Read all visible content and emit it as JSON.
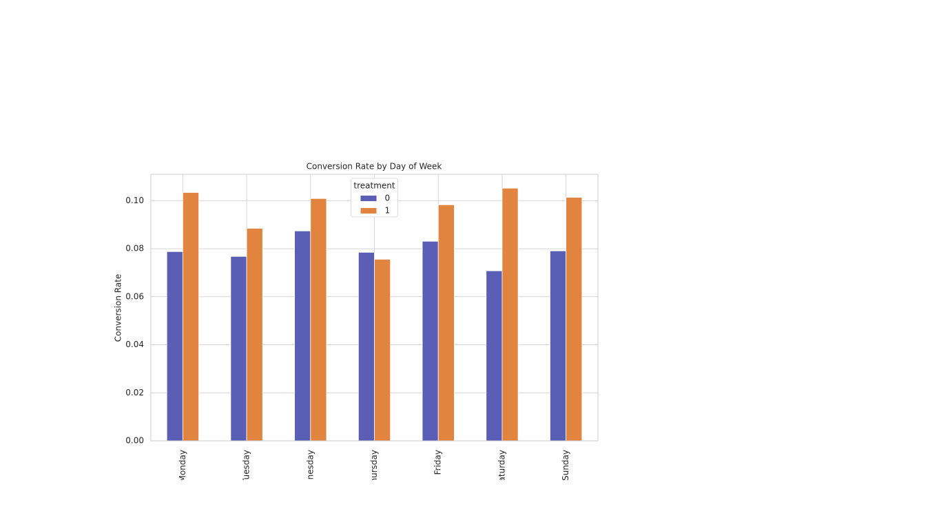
{
  "chart_data": {
    "type": "bar",
    "title": "Conversion Rate by Day of Week",
    "ylabel": "Conversion Rate",
    "categories": [
      "Monday",
      "Tuesday",
      "Wednesday",
      "Thursday",
      "Friday",
      "Saturday",
      "Sunday"
    ],
    "series": [
      {
        "name": "0",
        "color": "#5a5fb5",
        "values": [
          0.0788,
          0.0768,
          0.0874,
          0.0785,
          0.0831,
          0.0708,
          0.0791
        ]
      },
      {
        "name": "1",
        "color": "#e0843f",
        "values": [
          0.1034,
          0.0885,
          0.1009,
          0.0756,
          0.0983,
          0.1052,
          0.1014
        ]
      }
    ],
    "legend_title": "treatment",
    "legend": "upper center",
    "ylim": [
      0,
      0.111
    ],
    "yticks": [
      {
        "value": 0,
        "label": "0.00"
      },
      {
        "value": 0.02,
        "label": "0.02"
      },
      {
        "value": 0.04,
        "label": "0.04"
      },
      {
        "value": 0.06,
        "label": "0.06"
      },
      {
        "value": 0.08,
        "label": "0.08"
      },
      {
        "value": 0.1,
        "label": "0.10"
      }
    ],
    "grid": true
  }
}
